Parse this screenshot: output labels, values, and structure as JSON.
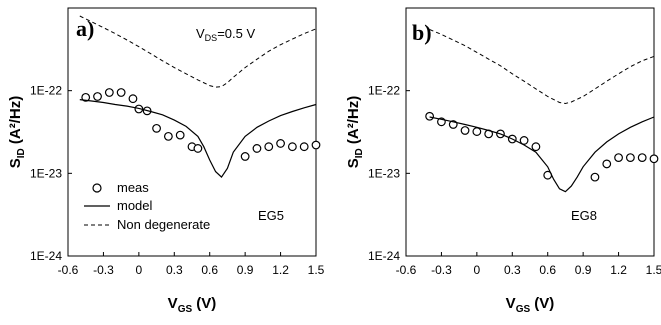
{
  "chart_data": [
    {
      "type": "line",
      "panel_label": "a)",
      "annotation_main": "V",
      "annotation_sub": "DS",
      "annotation_rest": "=0.5 V",
      "sample_label": "EG5",
      "xlabel_main": "V",
      "xlabel_sub": "GS",
      "xlabel_rest": " (V)",
      "ylabel_main": "S",
      "ylabel_sub": "ID",
      "ylabel_rest": " (A²/Hz)",
      "y_scale": "log",
      "xlim": [
        -0.6,
        1.5
      ],
      "ylim": [
        1e-24,
        1e-21
      ],
      "x_ticks": [
        "-0.6",
        "-0.3",
        "0",
        "0.3",
        "0.6",
        "0.9",
        "1.2",
        "1.5"
      ],
      "y_ticks": [
        "1E-24",
        "1E-23",
        "1E-22"
      ],
      "grid": false,
      "legend": {
        "position": "bottom-left",
        "entries": [
          "meas",
          "model",
          "Non degenerate"
        ]
      },
      "series": [
        {
          "name": "meas",
          "style": "open-circle",
          "x": [
            -0.45,
            -0.35,
            -0.25,
            -0.15,
            -0.05,
            0.0,
            0.07,
            0.15,
            0.25,
            0.35,
            0.45,
            0.5,
            0.9,
            1.0,
            1.1,
            1.2,
            1.3,
            1.4,
            1.5
          ],
          "y": [
            8.3e-23,
            8.5e-23,
            9.5e-23,
            9.5e-23,
            8e-23,
            6e-23,
            5.7e-23,
            3.5e-23,
            2.8e-23,
            2.9e-23,
            2.1e-23,
            2e-23,
            1.6e-23,
            2e-23,
            2.1e-23,
            2.3e-23,
            2.1e-23,
            2.1e-23,
            2.2e-23
          ]
        },
        {
          "name": "model",
          "style": "solid",
          "x": [
            -0.5,
            -0.4,
            -0.3,
            -0.2,
            -0.1,
            0.0,
            0.1,
            0.2,
            0.3,
            0.4,
            0.5,
            0.55,
            0.6,
            0.65,
            0.7,
            0.75,
            0.8,
            0.9,
            1.0,
            1.1,
            1.2,
            1.3,
            1.4,
            1.5
          ],
          "y": [
            7.8e-23,
            7.5e-23,
            7.2e-23,
            6.8e-23,
            6.5e-23,
            6.1e-23,
            5.6e-23,
            5.1e-23,
            4.4e-23,
            3.7e-23,
            2.8e-23,
            2.1e-23,
            1.45e-23,
            1.05e-23,
            9e-24,
            1.15e-23,
            1.8e-23,
            2.8e-23,
            3.6e-23,
            4.3e-23,
            5e-23,
            5.6e-23,
            6.2e-23,
            6.8e-23
          ]
        },
        {
          "name": "Non degenerate",
          "style": "dashed",
          "x": [
            -0.5,
            -0.4,
            -0.3,
            -0.2,
            -0.1,
            0.0,
            0.1,
            0.2,
            0.3,
            0.4,
            0.5,
            0.6,
            0.65,
            0.7,
            0.75,
            0.8,
            0.9,
            1.0,
            1.1,
            1.2,
            1.3,
            1.4,
            1.5
          ],
          "y": [
            8e-22,
            6.8e-22,
            5.8e-22,
            4.9e-22,
            4.1e-22,
            3.4e-22,
            2.8e-22,
            2.3e-22,
            1.9e-22,
            1.6e-22,
            1.35e-22,
            1.15e-22,
            1.1e-22,
            1.12e-22,
            1.25e-22,
            1.45e-22,
            1.9e-22,
            2.4e-22,
            3e-22,
            3.6e-22,
            4.2e-22,
            4.9e-22,
            5.6e-22
          ]
        }
      ]
    },
    {
      "type": "line",
      "panel_label": "b)",
      "sample_label": "EG8",
      "xlabel_main": "V",
      "xlabel_sub": "GS",
      "xlabel_rest": " (V)",
      "ylabel_main": "S",
      "ylabel_sub": "ID",
      "ylabel_rest": " (A²/Hz)",
      "y_scale": "log",
      "xlim": [
        -0.6,
        1.5
      ],
      "ylim": [
        1e-24,
        1e-21
      ],
      "x_ticks": [
        "-0.6",
        "-0.3",
        "0",
        "0.3",
        "0.6",
        "0.9",
        "1.2",
        "1.5"
      ],
      "y_ticks": [
        "1E-24",
        "1E-23",
        "1E-22"
      ],
      "grid": false,
      "series": [
        {
          "name": "meas",
          "style": "open-circle",
          "x": [
            -0.4,
            -0.3,
            -0.2,
            -0.1,
            0.0,
            0.1,
            0.2,
            0.3,
            0.4,
            0.5,
            0.6,
            1.0,
            1.1,
            1.2,
            1.3,
            1.4,
            1.5
          ],
          "y": [
            4.9e-23,
            4.2e-23,
            3.9e-23,
            3.3e-23,
            3.2e-23,
            3e-23,
            3e-23,
            2.6e-23,
            2.5e-23,
            2.1e-23,
            9.5e-24,
            9e-24,
            1.3e-23,
            1.55e-23,
            1.55e-23,
            1.55e-23,
            1.5e-23
          ]
        },
        {
          "name": "model",
          "style": "solid",
          "x": [
            -0.4,
            -0.3,
            -0.2,
            -0.1,
            0.0,
            0.1,
            0.2,
            0.3,
            0.4,
            0.5,
            0.6,
            0.65,
            0.7,
            0.75,
            0.8,
            0.85,
            0.9,
            1.0,
            1.1,
            1.2,
            1.3,
            1.4,
            1.5
          ],
          "y": [
            4.8e-23,
            4.5e-23,
            4.2e-23,
            3.9e-23,
            3.6e-23,
            3.3e-23,
            3e-23,
            2.6e-23,
            2.2e-23,
            1.8e-23,
            1.2e-23,
            8.5e-24,
            6.5e-24,
            6e-24,
            7e-24,
            9e-24,
            1.2e-23,
            1.8e-23,
            2.4e-23,
            3e-23,
            3.6e-23,
            4.2e-23,
            4.8e-23
          ]
        },
        {
          "name": "Non degenerate",
          "style": "dashed",
          "x": [
            -0.4,
            -0.3,
            -0.2,
            -0.1,
            0.0,
            0.1,
            0.2,
            0.3,
            0.4,
            0.5,
            0.6,
            0.7,
            0.75,
            0.8,
            0.9,
            1.0,
            1.1,
            1.2,
            1.3,
            1.4,
            1.5
          ],
          "y": [
            5.5e-22,
            4.8e-22,
            4.1e-22,
            3.5e-22,
            2.9e-22,
            2.4e-22,
            2e-22,
            1.6e-22,
            1.3e-22,
            1.05e-22,
            8.5e-23,
            7.2e-23,
            7e-23,
            7.3e-23,
            8.5e-23,
            1.05e-22,
            1.3e-22,
            1.6e-22,
            1.95e-22,
            2.3e-22,
            2.6e-22
          ]
        }
      ]
    }
  ]
}
